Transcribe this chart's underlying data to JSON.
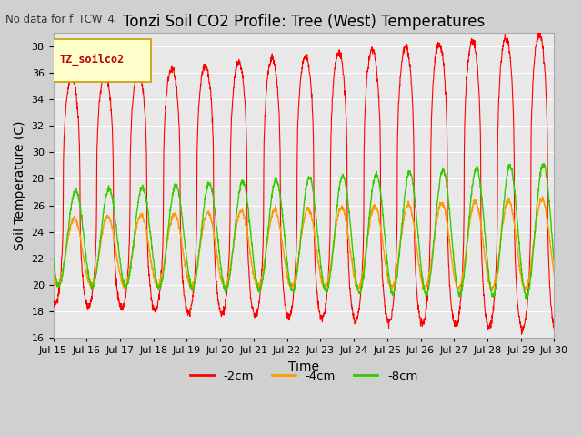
{
  "title": "Tonzi Soil CO2 Profile: Tree (West) Temperatures",
  "no_data_label": "No data for f_TCW_4",
  "xlabel": "Time",
  "ylabel": "Soil Temperature (C)",
  "ylim": [
    16,
    39
  ],
  "yticks": [
    16,
    18,
    20,
    22,
    24,
    26,
    28,
    30,
    32,
    34,
    36,
    38
  ],
  "xtick_labels": [
    "Jul 15",
    "Jul 16",
    "Jul 17",
    "Jul 18",
    "Jul 19",
    "Jul 20",
    "Jul 21",
    "Jul 22",
    "Jul 23",
    "Jul 24",
    "Jul 25",
    "Jul 26",
    "Jul 27",
    "Jul 28",
    "Jul 29",
    "Jul 30"
  ],
  "legend_box_color": "#ffffcc",
  "legend_box_label": "TZ_soilco2",
  "legend_box_text_color": "#bb0000",
  "line_colors": {
    "m2cm": "#ff0000",
    "m4cm": "#ff9900",
    "m8cm": "#33cc00"
  },
  "line_labels": [
    "-2cm",
    "-4cm",
    "-8cm"
  ],
  "plot_bg": "#e8e8e8",
  "fig_bg": "#d0d0d0",
  "grid_color": "#ffffff",
  "title_fontsize": 12,
  "axis_label_fontsize": 10,
  "tick_fontsize": 8,
  "days": 15,
  "spd": 144
}
